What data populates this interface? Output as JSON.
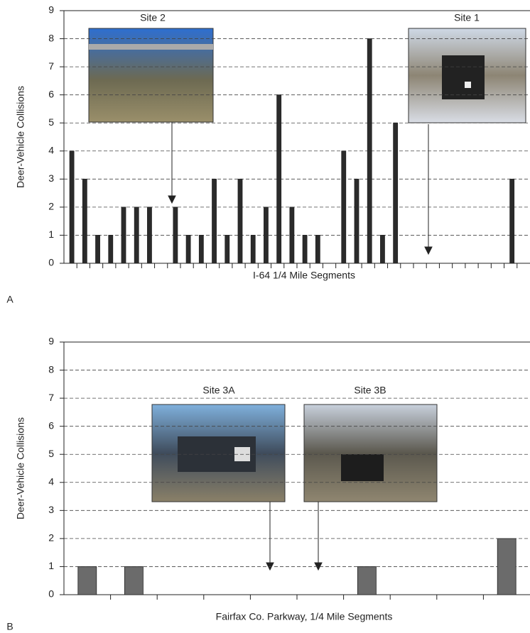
{
  "chart_data": [
    {
      "type": "bar",
      "panel_label": "A",
      "ylabel": "Deer-Vehicle Collisions",
      "xlabel": "I-64 1/4 Mile Segments",
      "categories": [
        null,
        null,
        null,
        null,
        null,
        null,
        null,
        null,
        null,
        null,
        null,
        null,
        null,
        null,
        null,
        null,
        null,
        null,
        null,
        null,
        null,
        null,
        null,
        null,
        null,
        null,
        null,
        null,
        null,
        null,
        null,
        null,
        null,
        null,
        null,
        null
      ],
      "values": [
        4,
        3,
        1,
        1,
        2,
        2,
        2,
        0,
        2,
        1,
        1,
        3,
        1,
        3,
        1,
        2,
        6,
        2,
        1,
        1,
        0,
        4,
        3,
        8,
        1,
        5,
        0,
        0,
        0,
        0,
        0,
        0,
        0,
        0,
        3,
        0
      ],
      "color": "#2b2b2b",
      "ylim": [
        0,
        9
      ],
      "yticks": [
        0,
        1,
        2,
        3,
        4,
        5,
        6,
        7,
        8,
        9
      ],
      "grid": true,
      "annotations": [
        "Site 2",
        "Site 1"
      ]
    },
    {
      "type": "bar",
      "panel_label": "B",
      "ylabel": "Deer-Vehicle Collisions",
      "xlabel": "Fairfax Co. Parkway, 1/4 Mile Segments",
      "categories": [
        null,
        null,
        null,
        null,
        null,
        null,
        null,
        null,
        null,
        null
      ],
      "values": [
        1,
        1,
        0,
        0,
        0,
        0,
        1,
        0,
        0,
        2
      ],
      "color": "#6b6b6b",
      "ylim": [
        0,
        9
      ],
      "yticks": [
        0,
        1,
        2,
        3,
        4,
        5,
        6,
        7,
        8,
        9
      ],
      "grid": true,
      "annotations": [
        "Site 3A",
        "Site 3B"
      ]
    }
  ]
}
